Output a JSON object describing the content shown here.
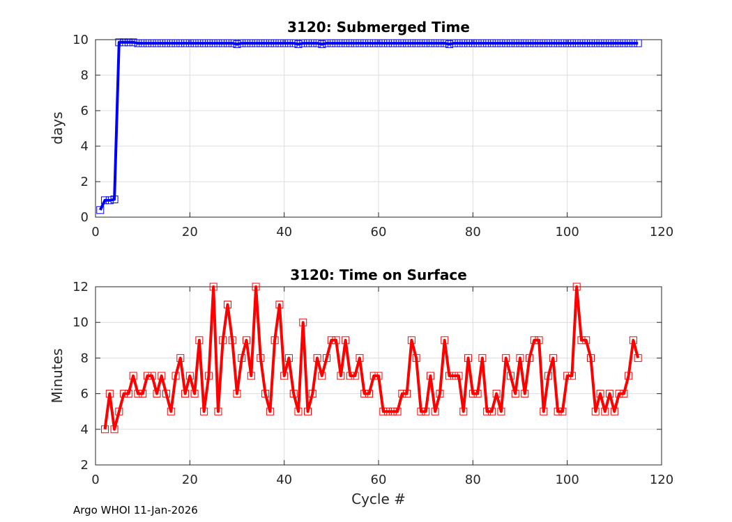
{
  "chart_data": [
    {
      "type": "line",
      "title": "3120: Submerged Time",
      "xlabel": "",
      "ylabel": "days",
      "xlim": [
        0,
        120
      ],
      "ylim": [
        0,
        10
      ],
      "xticks": [
        0,
        20,
        40,
        60,
        80,
        100,
        120
      ],
      "yticks": [
        0,
        2,
        4,
        6,
        8,
        10
      ],
      "grid": true,
      "color": "#0000ff",
      "marker": "square",
      "series": [
        {
          "name": "Submerged Time",
          "x": [
            1,
            2,
            3,
            4,
            5,
            6,
            7,
            8,
            9,
            10,
            11,
            12,
            13,
            14,
            15,
            16,
            17,
            18,
            19,
            20,
            21,
            22,
            23,
            24,
            25,
            26,
            27,
            28,
            29,
            30,
            31,
            32,
            33,
            34,
            35,
            36,
            37,
            38,
            39,
            40,
            41,
            42,
            43,
            44,
            45,
            46,
            47,
            48,
            49,
            50,
            51,
            52,
            53,
            54,
            55,
            56,
            57,
            58,
            59,
            60,
            61,
            62,
            63,
            64,
            65,
            66,
            67,
            68,
            69,
            70,
            71,
            72,
            73,
            74,
            75,
            76,
            77,
            78,
            79,
            80,
            81,
            82,
            83,
            84,
            85,
            86,
            87,
            88,
            89,
            90,
            91,
            92,
            93,
            94,
            95,
            96,
            97,
            98,
            99,
            100,
            101,
            102,
            103,
            104,
            105,
            106,
            107,
            108,
            109,
            110,
            111,
            112,
            113,
            114,
            115
          ],
          "values": [
            0.4,
            0.95,
            0.95,
            1.0,
            9.85,
            9.85,
            9.85,
            9.85,
            9.8,
            9.8,
            9.8,
            9.8,
            9.8,
            9.8,
            9.8,
            9.8,
            9.8,
            9.8,
            9.8,
            9.8,
            9.8,
            9.8,
            9.8,
            9.8,
            9.8,
            9.8,
            9.8,
            9.8,
            9.8,
            9.75,
            9.8,
            9.8,
            9.8,
            9.8,
            9.8,
            9.8,
            9.8,
            9.8,
            9.8,
            9.8,
            9.8,
            9.8,
            9.75,
            9.8,
            9.8,
            9.8,
            9.8,
            9.75,
            9.8,
            9.8,
            9.8,
            9.8,
            9.8,
            9.8,
            9.8,
            9.8,
            9.8,
            9.8,
            9.8,
            9.8,
            9.8,
            9.8,
            9.8,
            9.8,
            9.8,
            9.8,
            9.8,
            9.8,
            9.8,
            9.8,
            9.8,
            9.8,
            9.8,
            9.8,
            9.75,
            9.8,
            9.8,
            9.8,
            9.8,
            9.8,
            9.8,
            9.8,
            9.8,
            9.8,
            9.8,
            9.8,
            9.8,
            9.8,
            9.8,
            9.8,
            9.8,
            9.8,
            9.8,
            9.8,
            9.8,
            9.8,
            9.8,
            9.8,
            9.8,
            9.8,
            9.8,
            9.8,
            9.8,
            9.8,
            9.8,
            9.8,
            9.8,
            9.8,
            9.8,
            9.8,
            9.8,
            9.8,
            9.8,
            9.8,
            9.8
          ]
        }
      ]
    },
    {
      "type": "line",
      "title": "3120: Time on Surface",
      "xlabel": "Cycle #",
      "ylabel": "Minutes",
      "xlim": [
        0,
        120
      ],
      "ylim": [
        2,
        12
      ],
      "xticks": [
        0,
        20,
        40,
        60,
        80,
        100,
        120
      ],
      "yticks": [
        2,
        4,
        6,
        8,
        10,
        12
      ],
      "grid": true,
      "color": "#ff0000",
      "marker": "square",
      "series": [
        {
          "name": "Time on Surface",
          "x": [
            2,
            3,
            4,
            5,
            6,
            7,
            8,
            9,
            10,
            11,
            12,
            13,
            14,
            15,
            16,
            17,
            18,
            19,
            20,
            21,
            22,
            23,
            24,
            25,
            26,
            27,
            28,
            29,
            30,
            31,
            32,
            33,
            34,
            35,
            36,
            37,
            38,
            39,
            40,
            41,
            42,
            43,
            44,
            45,
            46,
            47,
            48,
            49,
            50,
            51,
            52,
            53,
            54,
            55,
            56,
            57,
            58,
            59,
            60,
            61,
            62,
            63,
            64,
            65,
            66,
            67,
            68,
            69,
            70,
            71,
            72,
            73,
            74,
            75,
            76,
            77,
            78,
            79,
            80,
            81,
            82,
            83,
            84,
            85,
            86,
            87,
            88,
            89,
            90,
            91,
            92,
            93,
            94,
            95,
            96,
            97,
            98,
            99,
            100,
            101,
            102,
            103,
            104,
            105,
            106,
            107,
            108,
            109,
            110,
            111,
            112,
            113,
            114,
            115
          ],
          "values": [
            4,
            6,
            4,
            5,
            6,
            6,
            7,
            6,
            6,
            7,
            7,
            6,
            7,
            6,
            5,
            7,
            8,
            6,
            7,
            6,
            9,
            5,
            7,
            12,
            5,
            9,
            11,
            9,
            6,
            8,
            9,
            7,
            12,
            8,
            6,
            5,
            9,
            11,
            7,
            8,
            6,
            5,
            10,
            5,
            6,
            8,
            7,
            8,
            9,
            9,
            7,
            9,
            7,
            7,
            8,
            6,
            6,
            7,
            7,
            5,
            5,
            5,
            5,
            6,
            6,
            9,
            8,
            5,
            5,
            7,
            5,
            6,
            9,
            7,
            7,
            7,
            5,
            8,
            6,
            6,
            8,
            5,
            5,
            6,
            5,
            8,
            7,
            6,
            8,
            6,
            8,
            9,
            9,
            5,
            7,
            8,
            5,
            5,
            7,
            7,
            12,
            9,
            9,
            8,
            5,
            6,
            5,
            6,
            5,
            6,
            6,
            7,
            9,
            8
          ]
        }
      ]
    }
  ],
  "footer": "Argo WHOI 11-Jan-2026"
}
